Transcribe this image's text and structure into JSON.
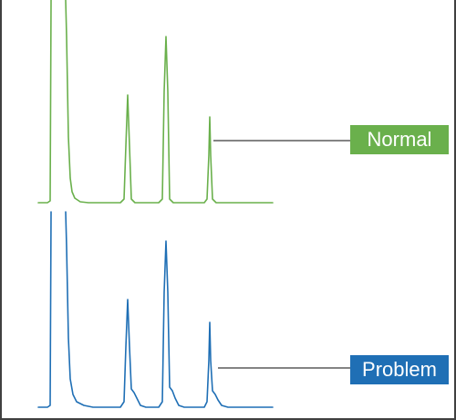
{
  "labels": {
    "normal": "Normal",
    "problem": "Problem"
  },
  "colors": {
    "normal": "#6ab04c",
    "problem": "#1f6fb5",
    "leader_line": "#3a3a3a",
    "frame": "#404040"
  }
}
